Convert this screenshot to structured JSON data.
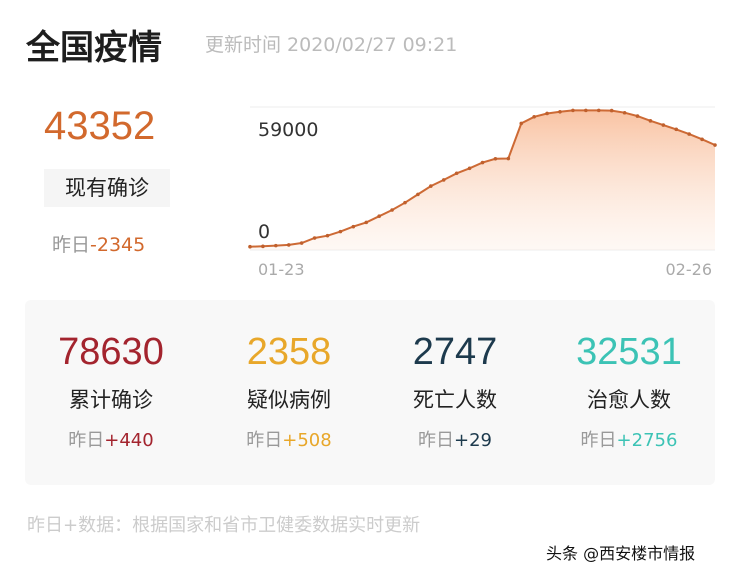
{
  "header": {
    "title": "全国疫情",
    "update_time": "更新时间 2020/02/27 09:21"
  },
  "current": {
    "value": "43352",
    "label": "现有确诊",
    "delta_prefix": "昨日",
    "delta": "-2345",
    "color": "#d2692d"
  },
  "chart_data": {
    "type": "area",
    "ylabels": [
      "59000",
      "0"
    ],
    "ylim": [
      0,
      59000
    ],
    "xlabels": [
      "01-23",
      "02-26"
    ],
    "grid": false,
    "values": [
      550,
      700,
      1000,
      1300,
      2100,
      4200,
      5200,
      6900,
      9000,
      10800,
      13400,
      16000,
      19100,
      22600,
      26100,
      28700,
      31500,
      33600,
      36000,
      37600,
      37700,
      52500,
      55300,
      56700,
      57400,
      58000,
      58000,
      58000,
      57900,
      57000,
      55600,
      53600,
      51800,
      50000,
      48000,
      45800,
      43400
    ],
    "color": "#d2692d"
  },
  "stats": [
    {
      "value": "78630",
      "label": "累计确诊",
      "delta_prefix": "昨日",
      "delta": "+440",
      "color": "#a3242e"
    },
    {
      "value": "2358",
      "label": "疑似病例",
      "delta_prefix": "昨日",
      "delta": "+508",
      "color": "#e8a72a"
    },
    {
      "value": "2747",
      "label": "死亡人数",
      "delta_prefix": "昨日",
      "delta": "+29",
      "color": "#1d3a4d"
    },
    {
      "value": "32531",
      "label": "治愈人数",
      "delta_prefix": "昨日",
      "delta": "+2756",
      "color": "#3cc3b5"
    }
  ],
  "footer": "昨日+数据：根据国家和省市卫健委数据实时更新",
  "watermark": "头条 @西安楼市情报"
}
